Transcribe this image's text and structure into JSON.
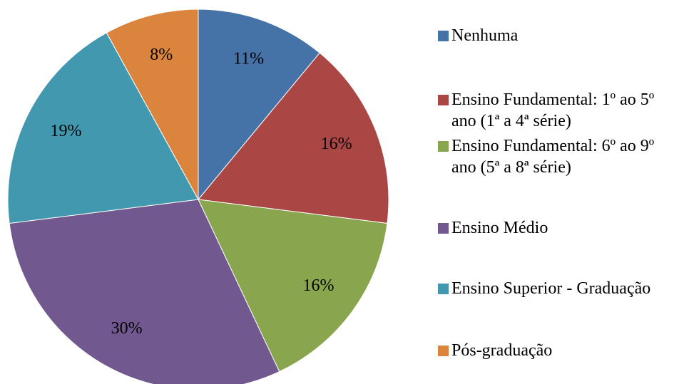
{
  "chart_data": {
    "type": "pie",
    "categories": [
      "Nenhuma",
      "Ensino Fundamental: 1º ao 5º ano (1ª a 4ª série)",
      "Ensino Fundamental: 6º ao 9º ano (5ª a 8ª série)",
      "Ensino Médio",
      "Ensino Superior - Graduação",
      "Pós-graduação"
    ],
    "values": [
      11,
      16,
      16,
      30,
      19,
      8
    ],
    "value_labels": [
      "11%",
      "16%",
      "16%",
      "30%",
      "19%",
      "8%"
    ],
    "colors": [
      "#4572a7",
      "#aa4643",
      "#89a54e",
      "#71588f",
      "#4198af",
      "#db843d"
    ],
    "legend": "right"
  }
}
